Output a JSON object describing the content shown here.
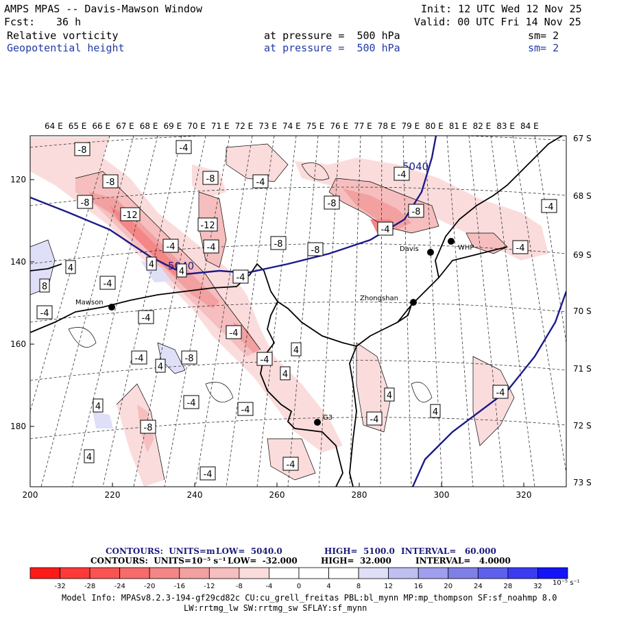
{
  "header": {
    "title": "AMPS MPAS -- Davis-Mawson Window",
    "fcst_label": "Fcst:",
    "fcst_value": "36 h",
    "init": "Init: 12 UTC Wed 12 Nov 25",
    "valid": "Valid: 00 UTC Fri 14 Nov 25",
    "field1_name": "Relative vorticity",
    "field1_level": "at pressure =  500 hPa",
    "field1_sm": "sm= 2",
    "field2_name": "Geopotential height",
    "field2_level": "at pressure =  500 hPa",
    "field2_sm": "sm= 2"
  },
  "map": {
    "top_lon_labels": [
      "64 E",
      "65 E",
      "66 E",
      "67 E",
      "68 E",
      "69 E",
      "70 E",
      "71 E",
      "72 E",
      "73 E",
      "74 E",
      "75 E",
      "76 E",
      "77 E",
      "78 E",
      "79 E",
      "80 E",
      "81 E",
      "82 E",
      "83 E",
      "84 E"
    ],
    "right_lat_labels": [
      "67 S",
      "68 S",
      "69 S",
      "70 S",
      "71 S",
      "72 S",
      "73 S"
    ],
    "left_y_labels": [
      "120",
      "140",
      "160",
      "180"
    ],
    "bottom_x_labels": [
      "200",
      "220",
      "240",
      "260",
      "280",
      "300",
      "320"
    ],
    "stations": [
      {
        "name": "Mawson"
      },
      {
        "name": "Davis"
      },
      {
        "name": "WHP"
      },
      {
        "name": "Zhongshan"
      },
      {
        "name": "G3"
      }
    ],
    "height_contour_labels": [
      "5040",
      "5040"
    ],
    "vorticity_labels": [
      "-8",
      "-4",
      "-8",
      "-8",
      "-4",
      "-8",
      "-8",
      "-12",
      "-8",
      "-12",
      "-4",
      "-4",
      "-8",
      "-8",
      "-4",
      "-4",
      "-4",
      "4",
      "4",
      "8",
      "-4",
      "-4",
      "-4",
      "-4",
      "-8",
      "-4",
      "4",
      "4",
      "-4",
      "4",
      "-4",
      "-8",
      "4",
      "-4",
      "-4",
      "-4",
      "-4",
      "4",
      "4",
      "-4",
      "-4",
      "4",
      "-4",
      "4"
    ]
  },
  "legend": {
    "line1_label": "CONTOURS:  UNITS=m",
    "line1_low": "LOW=  5040.0",
    "line1_high": "HIGH=  5100.0",
    "line1_interval": "INTERVAL=   60.000",
    "line2_label": "CONTOURS:  UNITS=10⁻⁵ s⁻¹",
    "line2_low": "LOW=  -32.000",
    "line2_high": "HIGH=  32.000",
    "line2_interval": "INTERVAL=   4.0000",
    "colorbar_ticks": [
      "-32",
      "-28",
      "-24",
      "-20",
      "-16",
      "-12",
      "-8",
      "-4",
      "0",
      "4",
      "8",
      "12",
      "16",
      "20",
      "24",
      "28",
      "32"
    ],
    "colorbar_unit": "10⁻⁵ s⁻¹",
    "colors": [
      "#ff1a1a",
      "#ff3838",
      "#fb5252",
      "#f76b6b",
      "#f48686",
      "#f2a0a0",
      "#f6bebe",
      "#fbdcdc",
      "#ffffff",
      "#ffffff",
      "#dfdff8",
      "#bfbff2",
      "#9f9fee",
      "#7f7fe8",
      "#5f5fee",
      "#3b3bf2",
      "#1414f8"
    ]
  },
  "model_info": {
    "line1": "Model Info: MPASv8.2.3-194-gf29cd82c CU:cu_grell_freitas PBL:bl_mynn MP:mp_thompson SF:sf_noahmp 8.0",
    "line2": "LW:rrtmg_lw SW:rrtmg_sw SFLAY:sf_mynn"
  }
}
